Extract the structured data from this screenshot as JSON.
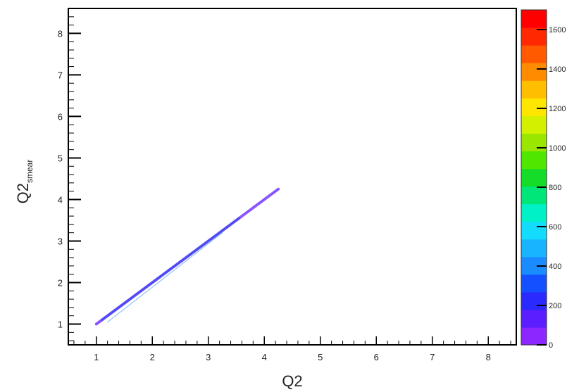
{
  "chart_data": {
    "type": "heatmap",
    "title": "",
    "xlabel": "Q2",
    "ylabel_main": "Q2",
    "ylabel_sub": "smear",
    "xlim": [
      0.5,
      8.5
    ],
    "ylim": [
      0.5,
      8.6
    ],
    "x_ticks": [
      "1",
      "2",
      "3",
      "4",
      "5",
      "6",
      "7",
      "8"
    ],
    "y_ticks": [
      "1",
      "2",
      "3",
      "4",
      "5",
      "6",
      "7",
      "8"
    ],
    "colorbar": {
      "zlim": [
        0,
        1700
      ],
      "tick_values": [
        0,
        200,
        400,
        600,
        800,
        1000,
        1200,
        1400,
        1600
      ],
      "tick_labels": [
        "0",
        "200",
        "400",
        "600",
        "800",
        "1000",
        "1200",
        "1400",
        "1600"
      ],
      "colors": [
        "#8c28ff",
        "#5a1eff",
        "#2a2aff",
        "#1450ff",
        "#1a8cff",
        "#19b4ff",
        "#14dcff",
        "#00f0c8",
        "#00e678",
        "#14dc28",
        "#50e600",
        "#9be600",
        "#d2f000",
        "#ffe600",
        "#ffbe00",
        "#ff8c00",
        "#ff5a00",
        "#ff2800",
        "#ff0000"
      ]
    },
    "grid": false,
    "band": {
      "x_start": 1.0,
      "x_end": 4.25,
      "y_start": 1.0,
      "y_end": 4.25,
      "z_typical": 200
    }
  }
}
